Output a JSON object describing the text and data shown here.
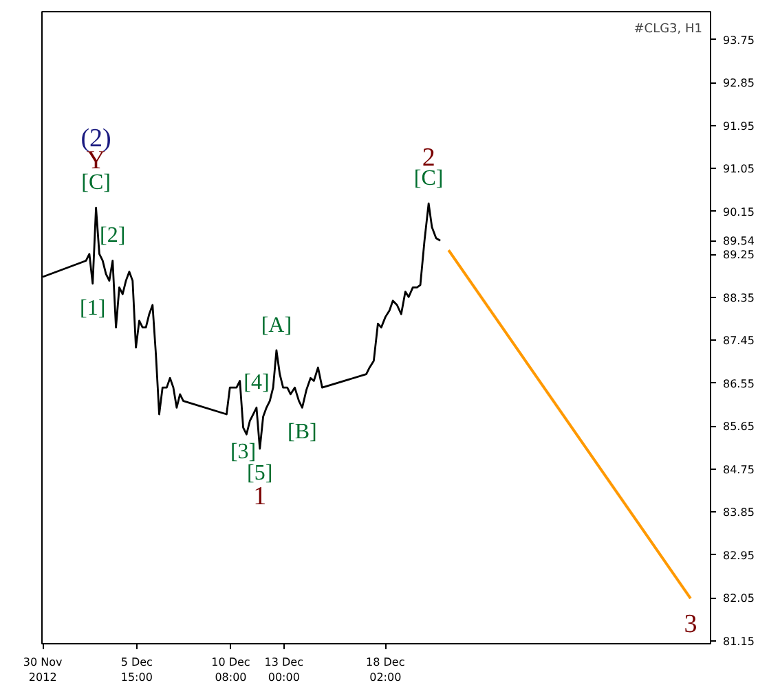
{
  "chart_data": {
    "type": "line",
    "title": "#CLG3, H1",
    "series": [
      {
        "color": "#000000",
        "x": [
          "2012-11-30T22:00",
          "2012-12-03T02:00",
          "2012-12-03T06:00",
          "2012-12-03T10:00",
          "2012-12-03T14:00",
          "2012-12-03T18:00",
          "2012-12-03T22:00",
          "2012-12-04T02:00",
          "2012-12-04T06:00",
          "2012-12-04T10:00",
          "2012-12-04T14:00",
          "2012-12-04T18:00",
          "2012-12-04T22:00",
          "2012-12-05T02:00",
          "2012-12-05T06:00",
          "2012-12-05T10:00",
          "2012-12-05T14:00",
          "2012-12-05T18:00",
          "2012-12-05T22:00",
          "2012-12-06T02:00",
          "2012-12-06T06:00",
          "2012-12-06T10:00",
          "2012-12-06T14:00",
          "2012-12-06T18:00",
          "2012-12-06T22:00",
          "2012-12-07T03:00",
          "2012-12-07T07:00",
          "2012-12-07T11:00",
          "2012-12-07T15:00",
          "2012-12-07T19:00",
          "2012-12-07T23:00",
          "2012-12-10T03:00",
          "2012-12-10T07:00",
          "2012-12-10T11:00",
          "2012-12-10T15:00",
          "2012-12-10T19:00",
          "2012-12-10T23:00",
          "2012-12-11T03:00",
          "2012-12-11T07:00",
          "2012-12-11T11:00",
          "2012-12-11T15:00",
          "2012-12-11T19:00",
          "2012-12-11T23:00",
          "2012-12-12T03:00",
          "2012-12-12T07:00",
          "2012-12-12T11:00",
          "2012-12-12T15:00",
          "2012-12-12T19:00",
          "2012-12-12T23:00",
          "2012-12-13T04:00",
          "2012-12-13T08:00",
          "2012-12-13T13:00",
          "2012-12-13T18:00",
          "2012-12-13T22:00",
          "2012-12-14T03:00",
          "2012-12-14T08:00",
          "2012-12-14T12:00",
          "2012-12-14T17:00",
          "2012-12-14T22:00",
          "2012-12-17T03:00",
          "2012-12-17T07:00",
          "2012-12-17T12:00",
          "2012-12-17T17:00",
          "2012-12-17T21:00",
          "2012-12-18T02:00",
          "2012-12-18T07:00",
          "2012-12-18T11:00",
          "2012-12-18T16:00",
          "2012-12-18T21:00",
          "2012-12-19T02:00",
          "2012-12-19T06:00",
          "2012-12-19T11:00",
          "2012-12-19T16:00",
          "2012-12-19T20:00",
          "2012-12-20T01:00",
          "2012-12-20T06:00",
          "2012-12-20T10:00",
          "2012-12-20T15:00",
          "2012-12-20T20:00"
        ],
        "values": [
          88.78,
          89.12,
          89.26,
          88.64,
          90.23,
          89.26,
          89.12,
          88.84,
          88.7,
          89.12,
          87.72,
          88.56,
          88.42,
          88.7,
          88.89,
          88.7,
          87.3,
          87.86,
          87.72,
          87.72,
          88.0,
          88.19,
          87.16,
          85.9,
          86.46,
          86.46,
          86.66,
          86.46,
          86.04,
          86.32,
          86.18,
          85.9,
          86.46,
          86.46,
          86.46,
          86.6,
          85.62,
          85.48,
          85.76,
          85.9,
          86.04,
          85.18,
          85.85,
          86.04,
          86.18,
          86.46,
          87.24,
          86.74,
          86.46,
          86.46,
          86.32,
          86.46,
          86.18,
          86.04,
          86.41,
          86.66,
          86.6,
          86.88,
          86.46,
          86.74,
          86.88,
          87.02,
          87.8,
          87.72,
          87.94,
          88.08,
          88.28,
          88.19,
          88.0,
          88.47,
          88.36,
          88.56,
          88.56,
          88.61,
          89.54,
          90.32,
          89.82,
          89.59,
          89.54
        ]
      },
      {
        "color": "#ff9900",
        "x": [
          "2012-12-21T06:00",
          "2013-01-02T09:00"
        ],
        "values": [
          89.34,
          82.04
        ]
      }
    ],
    "annotations": [
      {
        "text": "(2)",
        "x": "2012-12-03T14:00",
        "y": 90.23
      },
      {
        "text": "Y",
        "x": "2012-12-03T14:00",
        "y": 90.23
      },
      {
        "text": "[C]",
        "x": "2012-12-03T14:00",
        "y": 90.23
      },
      {
        "text": "[2]",
        "x": "2012-12-04T10:00",
        "y": 89.12
      },
      {
        "text": "[1]",
        "x": "2012-12-03T10:00",
        "y": 88.64
      },
      {
        "text": "[A]",
        "x": "2012-12-12T15:00",
        "y": 87.24
      },
      {
        "text": "[4]",
        "x": "2012-12-11T15:00",
        "y": 86.04
      },
      {
        "text": "[3]",
        "x": "2012-12-10T23:00",
        "y": 85.62
      },
      {
        "text": "[5]",
        "x": "2012-12-11T19:00",
        "y": 85.18
      },
      {
        "text": "1",
        "x": "2012-12-11T19:00",
        "y": 85.18
      },
      {
        "text": "[B]",
        "x": "2012-12-13T22:00",
        "y": 86.04
      },
      {
        "text": "2",
        "x": "2012-12-20T06:00",
        "y": 90.32
      },
      {
        "text": "[C]",
        "x": "2012-12-20T06:00",
        "y": 90.32
      },
      {
        "text": "3",
        "x": "2013-01-02T09:00",
        "y": 82.04
      }
    ],
    "xlim": [
      "2012-11-30T21:00",
      "2013-01-03T09:00"
    ],
    "xticks": [
      {
        "value": "2012-11-30T22:00",
        "label": "30 Nov 2012"
      },
      {
        "value": "2012-12-05T15:00",
        "label": "5 Dec 15:00"
      },
      {
        "value": "2012-12-10T08:00",
        "label": "10 Dec 08:00"
      },
      {
        "value": "2012-12-13T00:00",
        "label": "13 Dec 00:00"
      },
      {
        "value": "2012-12-18T02:00",
        "label": "18 Dec 02:00"
      }
    ],
    "ylim": [
      81.09,
      94.34
    ],
    "yticks": [
      81.15,
      82.05,
      82.95,
      83.85,
      84.75,
      85.65,
      86.55,
      87.45,
      88.35,
      89.25,
      89.54,
      90.15,
      91.05,
      91.95,
      92.85,
      93.75
    ],
    "grid": false,
    "marker": "none",
    "line_style": "solid"
  }
}
